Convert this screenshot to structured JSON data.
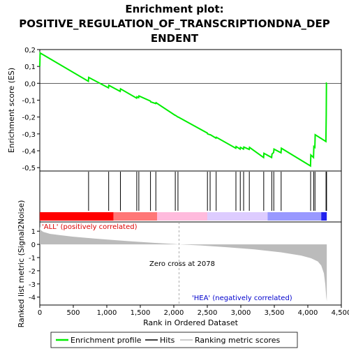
{
  "chart_data": {
    "type": "line",
    "title": "Enrichment plot: POSITIVE_REGULATION_OF_TRANSCRIPTIONDNA_DEPENDENT",
    "title_lines": [
      "Enrichment plot:",
      "POSITIVE_REGULATION_OF_TRANSCRIPTIONDNA_DEP",
      "ENDENT"
    ],
    "xlabel": "Rank in Ordered Dataset",
    "xlim": [
      0,
      4500
    ],
    "x_ticks": [
      "0",
      "500",
      "1,000",
      "1,500",
      "2,000",
      "2,500",
      "3,000",
      "3,500",
      "4,000",
      "4,500"
    ],
    "x_tick_values": [
      0,
      500,
      1000,
      1500,
      2000,
      2500,
      3000,
      3500,
      4000,
      4500
    ],
    "es_panel": {
      "ylabel": "Enrichment score (ES)",
      "ylim": [
        -0.52,
        0.2
      ],
      "y_ticks": [
        "0,2",
        "0,1",
        "0,0",
        "-0,1",
        "-0,2",
        "-0,3",
        "-0,4",
        "-0,5"
      ],
      "y_tick_values": [
        0.2,
        0.1,
        0.0,
        -0.1,
        -0.2,
        -0.3,
        -0.4,
        -0.5
      ],
      "series": [
        {
          "name": "Enrichment profile",
          "color": "#00ee00",
          "x": [
            0,
            5,
            725,
            730,
            1025,
            1030,
            1200,
            1205,
            1445,
            1450,
            1475,
            1480,
            1650,
            1655,
            1730,
            1735,
            2020,
            2025,
            2060,
            2065,
            2500,
            2505,
            2540,
            2545,
            2630,
            2635,
            2925,
            2930,
            2990,
            2995,
            3040,
            3045,
            3125,
            3130,
            3340,
            3345,
            3460,
            3465,
            3490,
            3495,
            3600,
            3605,
            4040,
            4045,
            4085,
            4090,
            4105,
            4110,
            4270,
            4275,
            4278,
            4283
          ],
          "y": [
            0.1,
            0.18,
            0.012,
            0.035,
            -0.027,
            -0.012,
            -0.048,
            -0.033,
            -0.088,
            -0.08,
            -0.085,
            -0.075,
            -0.105,
            -0.11,
            -0.12,
            -0.115,
            -0.19,
            -0.19,
            -0.2,
            -0.2,
            -0.295,
            -0.3,
            -0.305,
            -0.305,
            -0.325,
            -0.32,
            -0.385,
            -0.375,
            -0.39,
            -0.38,
            -0.39,
            -0.378,
            -0.392,
            -0.38,
            -0.44,
            -0.415,
            -0.44,
            -0.42,
            -0.41,
            -0.39,
            -0.412,
            -0.385,
            -0.49,
            -0.425,
            -0.44,
            -0.375,
            -0.38,
            -0.305,
            -0.345,
            -0.185,
            0.002,
            0.002
          ]
        }
      ]
    },
    "hits": {
      "name": "Hits",
      "color": "#000000",
      "positions": [
        728,
        1028,
        1203,
        1447,
        1478,
        1652,
        1732,
        2022,
        2062,
        2502,
        2542,
        2632,
        2927,
        2992,
        3042,
        3127,
        3342,
        3462,
        3492,
        3602,
        4042,
        4087,
        4107,
        4272,
        4280
      ]
    },
    "heatmap": {
      "colors": [
        "#ff0000",
        "#ff7777",
        "#ffbbdd",
        "#ddccff",
        "#9999ff",
        "#2222ee"
      ],
      "stops": [
        0,
        1100,
        1750,
        2500,
        3400,
        4200,
        4283
      ]
    },
    "metric_panel": {
      "name": "Ranking metric scores",
      "ylabel": "Ranked list metric (Signal2Noise)",
      "ylim": [
        -4.6,
        1.7
      ],
      "y_ticks": [
        "1",
        "0",
        "-1",
        "-2",
        "-3",
        "-4"
      ],
      "y_tick_values": [
        1,
        0,
        -1,
        -2,
        -3,
        -4
      ],
      "fill_color": "#bbbbbb",
      "x": [
        0,
        10,
        50,
        150,
        300,
        500,
        800,
        1100,
        1400,
        1700,
        2000,
        2078,
        2400,
        2800,
        3200,
        3600,
        3900,
        4050,
        4150,
        4200,
        4240,
        4260,
        4275,
        4283
      ],
      "y": [
        1.35,
        1.1,
        0.95,
        0.8,
        0.7,
        0.58,
        0.45,
        0.33,
        0.22,
        0.12,
        0.03,
        0.0,
        -0.08,
        -0.22,
        -0.38,
        -0.6,
        -0.85,
        -1.05,
        -1.3,
        -1.6,
        -2.2,
        -3.0,
        -4.0,
        -4.3
      ],
      "zero_cross_label": "Zero cross at 2078",
      "zero_cross": 2078,
      "pos_label": "'ALL' (positively correlated)",
      "neg_label": "'HEA' (negatively correlated)"
    },
    "legend": {
      "placement": "bottom",
      "entries": [
        "Enrichment profile",
        "Hits",
        "Ranking metric scores"
      ]
    }
  }
}
